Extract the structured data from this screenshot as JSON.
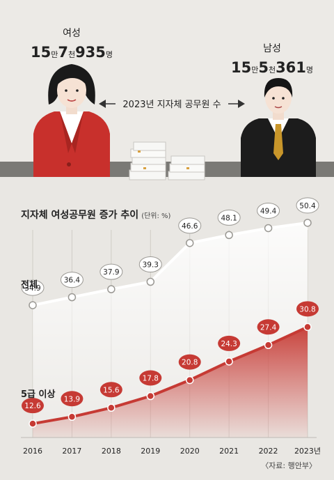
{
  "header": {
    "female_label": "여성",
    "female_count": {
      "big1": "15",
      "unit1": "만",
      "big2": "7",
      "unit2": "천",
      "big3": "935",
      "unit3": "명"
    },
    "male_label": "남성",
    "male_count": {
      "big1": "15",
      "unit1": "만",
      "big2": "5",
      "unit2": "천",
      "big3": "361",
      "unit3": "명"
    },
    "comparison_label": "2023년 지자체 공무원 수"
  },
  "colors": {
    "total_line": "#ffffff",
    "grade5_line": "#c63a34",
    "female_jacket": "#c8302c",
    "male_jacket": "#1c1c1c",
    "tie": "#c9962a"
  },
  "chart_data": {
    "type": "line",
    "title": "지자체 여성공무원 증가 추이",
    "unit_note": "(단위: %)",
    "categories": [
      "2016",
      "2017",
      "2018",
      "2019",
      "2020",
      "2021",
      "2022",
      "2023년"
    ],
    "series": [
      {
        "name": "전체",
        "values": [
          34.9,
          36.4,
          37.9,
          39.3,
          46.6,
          48.1,
          49.4,
          50.4
        ],
        "labels": [
          "34.9",
          "36.4",
          "37.9",
          "39.3",
          "46.6",
          "48.1",
          "49.4",
          "50.4"
        ]
      },
      {
        "name": "5급 이상",
        "values": [
          12.6,
          13.9,
          15.6,
          17.8,
          20.8,
          24.3,
          27.4,
          30.8
        ],
        "labels": [
          "12.6",
          "13.9",
          "15.6",
          "17.8",
          "20.8",
          "24.3",
          "27.4",
          "30.8"
        ]
      }
    ],
    "ylim": [
      10,
      53
    ],
    "grid": "vertical"
  },
  "source": "〈자료: 행안부〉"
}
